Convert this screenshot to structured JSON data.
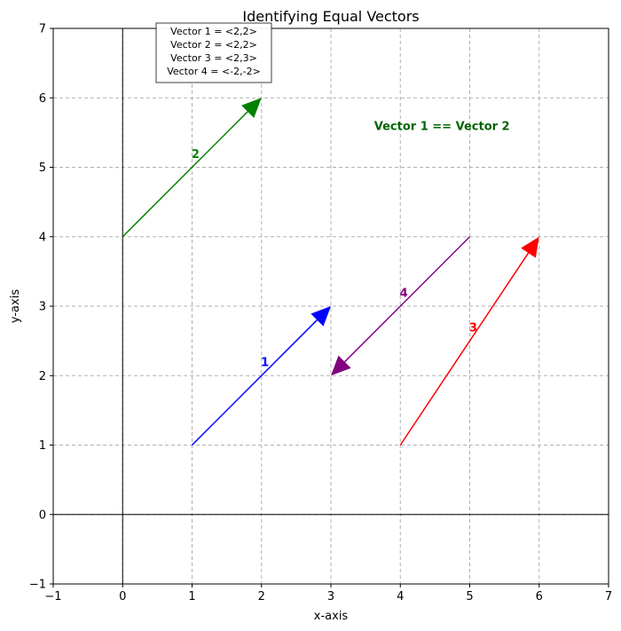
{
  "chart_data": {
    "type": "vector-plot",
    "title": "Identifying Equal Vectors",
    "xlabel": "x-axis",
    "ylabel": "y-axis",
    "xlim": [
      -1,
      7
    ],
    "ylim": [
      -1,
      7
    ],
    "xticks": [
      -1,
      0,
      1,
      2,
      3,
      4,
      5,
      6,
      7
    ],
    "yticks": [
      -1,
      0,
      1,
      2,
      3,
      4,
      5,
      6,
      7
    ],
    "grid": true,
    "vectors": [
      {
        "label": "1",
        "name": "Vector 1",
        "start": [
          1,
          1
        ],
        "components": [
          2,
          2
        ],
        "color": "#0000ff",
        "label_pos": [
          2.05,
          2.2
        ]
      },
      {
        "label": "2",
        "name": "Vector 2",
        "start": [
          0,
          4
        ],
        "components": [
          2,
          2
        ],
        "color": "#008000",
        "label_pos": [
          1.05,
          5.2
        ]
      },
      {
        "label": "3",
        "name": "Vector 3",
        "start": [
          4,
          1
        ],
        "components": [
          2,
          3
        ],
        "color": "#ff0000",
        "label_pos": [
          5.05,
          2.7
        ]
      },
      {
        "label": "4",
        "name": "Vector 4",
        "start": [
          5,
          4
        ],
        "components": [
          -2,
          -2
        ],
        "color": "#800080",
        "label_pos": [
          4.05,
          3.2
        ]
      }
    ],
    "legend": {
      "placement": "top-left",
      "entries": [
        "Vector 1 = <2,2>",
        "Vector 2 = <2,2>",
        "Vector 3 = <2,3>",
        "Vector 4 = <-2,-2>"
      ]
    },
    "annotation": {
      "text": "Vector 1 == Vector 2",
      "color": "#006400",
      "position": [
        4.6,
        5.6
      ]
    }
  }
}
